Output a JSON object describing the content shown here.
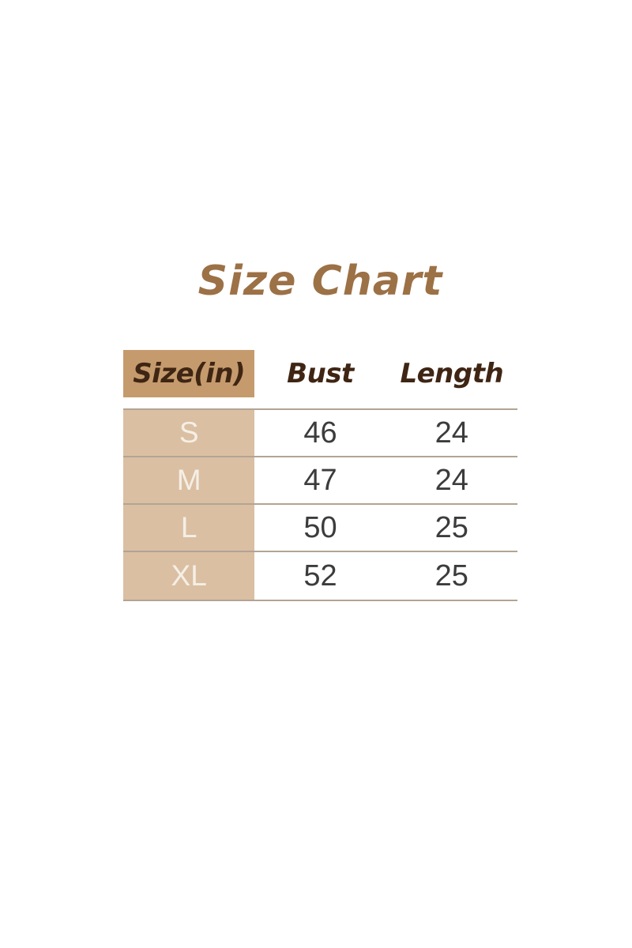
{
  "title": {
    "text": "Size Chart"
  },
  "table": {
    "columns": [
      "Size(in)",
      "Bust",
      "Length"
    ],
    "rows": [
      {
        "size": "S",
        "bust": "46",
        "length": "24"
      },
      {
        "size": "M",
        "bust": "47",
        "length": "24"
      },
      {
        "size": "L",
        "bust": "50",
        "length": "25"
      },
      {
        "size": "XL",
        "bust": "52",
        "length": "25"
      }
    ]
  },
  "chart_data": {
    "type": "table",
    "title": "Size Chart",
    "unit": "in",
    "columns": [
      "Size(in)",
      "Bust",
      "Length"
    ],
    "rows": [
      [
        "S",
        46,
        24
      ],
      [
        "M",
        47,
        24
      ],
      [
        "L",
        50,
        25
      ],
      [
        "XL",
        52,
        25
      ]
    ]
  },
  "colors": {
    "title_text": "#9c7146",
    "header_cell_bg": "#c59b6d",
    "header_text": "#3f2513",
    "size_column_bg": "#dabfa3",
    "size_column_text": "#f5efe5",
    "value_text": "#3c3c3c",
    "divider_line": "#b2a494",
    "page_bg": "#ffffff"
  }
}
